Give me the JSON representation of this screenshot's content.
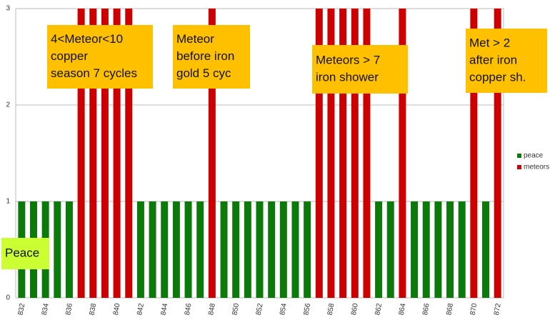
{
  "chart_data": {
    "type": "bar",
    "categories": [
      "832",
      null,
      "834",
      null,
      "836",
      null,
      "838",
      null,
      "840",
      null,
      "842",
      null,
      "844",
      null,
      "846",
      null,
      "848",
      null,
      "850",
      null,
      "852",
      null,
      "854",
      null,
      "856",
      null,
      "858",
      null,
      "860",
      null,
      "862",
      null,
      "864",
      null,
      "866",
      null,
      "868",
      null,
      "870",
      null,
      "872"
    ],
    "series": [
      {
        "name": "peace",
        "color": "#0b7a0b",
        "values": [
          1,
          1,
          1,
          1,
          1,
          null,
          null,
          null,
          null,
          null,
          1,
          1,
          1,
          1,
          1,
          1,
          null,
          1,
          1,
          1,
          1,
          1,
          1,
          1,
          1,
          null,
          null,
          null,
          null,
          null,
          1,
          1,
          null,
          1,
          1,
          1,
          1,
          1,
          null,
          1,
          null
        ]
      },
      {
        "name": "meteors",
        "color": "#cc0000",
        "values": [
          null,
          null,
          null,
          null,
          null,
          3,
          3,
          3,
          3,
          3,
          null,
          null,
          null,
          null,
          null,
          null,
          3,
          null,
          null,
          null,
          null,
          null,
          null,
          null,
          null,
          3,
          3,
          3,
          3,
          3,
          null,
          null,
          3,
          null,
          null,
          null,
          null,
          null,
          3,
          null,
          3
        ]
      }
    ],
    "ylim": [
      0,
      3
    ],
    "yticks": [
      0,
      1,
      2,
      3
    ],
    "grid": true,
    "legend": "right",
    "annotations": [
      {
        "lines": [
          "4<Meteor<10",
          "copper",
          "season 7 cycles"
        ],
        "color": "#ffc000"
      },
      {
        "lines": [
          "Meteor",
          "before iron",
          "gold  5 cyc"
        ],
        "color": "#ffc000"
      },
      {
        "lines": [
          "Meteors > 7",
          "iron shower"
        ],
        "color": "#ffc000"
      },
      {
        "lines": [
          "Met > 2",
          "after iron",
          "copper sh."
        ],
        "color": "#ffc000"
      },
      {
        "lines": [
          "Peace"
        ],
        "color": "#ccff33"
      }
    ]
  }
}
